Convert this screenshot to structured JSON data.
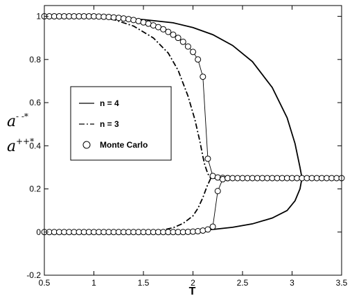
{
  "chart_data": {
    "type": "line",
    "title": "",
    "xlabel": "T",
    "ylabel_lines": [
      {
        "base": "a",
        "sup": "- -*"
      },
      {
        "base": "a",
        "sup": "++*"
      }
    ],
    "xlim": [
      0.5,
      3.5
    ],
    "ylim": [
      -0.2,
      1.05
    ],
    "x_ticks": [
      0.5,
      1,
      1.5,
      2,
      2.5,
      3,
      3.5
    ],
    "y_ticks": [
      -0.2,
      0,
      0.2,
      0.4,
      0.6,
      0.8,
      1
    ],
    "x_tick_labels": [
      "0.5",
      "1",
      "1.5",
      "2",
      "2.5",
      "3",
      "3.5"
    ],
    "y_tick_labels": [
      "-0.2",
      "0",
      "0.2",
      "0.4",
      "0.6",
      "0.8",
      "1"
    ],
    "grid": false,
    "legend_position": "left",
    "series": [
      {
        "name": "n = 4",
        "style": "solid",
        "color": "#000000",
        "branches": [
          {
            "x": [
              0.5,
              1.0,
              1.5,
              1.8,
              2.0,
              2.2,
              2.4,
              2.6,
              2.8,
              2.95,
              3.03,
              3.08,
              3.1
            ],
            "y": [
              1.0,
              0.997,
              0.985,
              0.97,
              0.948,
              0.915,
              0.865,
              0.79,
              0.67,
              0.53,
              0.41,
              0.3,
              0.25
            ]
          },
          {
            "x": [
              0.5,
              1.0,
              1.5,
              1.8,
              2.0,
              2.2,
              2.4,
              2.6,
              2.8,
              2.95,
              3.03,
              3.08,
              3.1
            ],
            "y": [
              0.0,
              0.0,
              0.001,
              0.003,
              0.006,
              0.012,
              0.022,
              0.038,
              0.065,
              0.1,
              0.145,
              0.2,
              0.25
            ]
          },
          {
            "x": [
              3.1,
              3.5
            ],
            "y": [
              0.25,
              0.25
            ]
          }
        ]
      },
      {
        "name": "n = 3",
        "style": "dashdot",
        "color": "#000000",
        "branches": [
          {
            "x": [
              0.5,
              1.0,
              1.2,
              1.4,
              1.6,
              1.75,
              1.85,
              1.95,
              2.02,
              2.07,
              2.1,
              2.12,
              2.15,
              2.18
            ],
            "y": [
              1.0,
              0.998,
              0.985,
              0.955,
              0.9,
              0.83,
              0.75,
              0.63,
              0.52,
              0.42,
              0.35,
              0.31,
              0.27,
              0.25
            ]
          },
          {
            "x": [
              0.5,
              1.0,
              1.5,
              1.6,
              1.7,
              1.8,
              1.9,
              2.0,
              2.05,
              2.1,
              2.14,
              2.18
            ],
            "y": [
              0.0,
              0.0,
              0.001,
              0.004,
              0.01,
              0.02,
              0.04,
              0.075,
              0.11,
              0.16,
              0.21,
              0.25
            ]
          },
          {
            "x": [
              2.18,
              3.5
            ],
            "y": [
              0.25,
              0.25
            ]
          }
        ]
      },
      {
        "name": "Monte Carlo",
        "style": "markers-line",
        "marker": "circle",
        "color": "#000000",
        "branches": [
          {
            "x": [
              0.5,
              0.55,
              0.6,
              0.65,
              0.7,
              0.75,
              0.8,
              0.85,
              0.9,
              0.95,
              1.0,
              1.05,
              1.1,
              1.15,
              1.2,
              1.25,
              1.3,
              1.35,
              1.4,
              1.45,
              1.5,
              1.55,
              1.6,
              1.65,
              1.7,
              1.75,
              1.8,
              1.85,
              1.9,
              1.95,
              2.0,
              2.05,
              2.1,
              2.15,
              2.2,
              2.25,
              2.3,
              2.35
            ],
            "y": [
              1.0,
              1.0,
              1.0,
              1.0,
              1.0,
              1.0,
              1.0,
              1.0,
              1.0,
              1.0,
              1.0,
              0.999,
              0.998,
              0.997,
              0.995,
              0.993,
              0.99,
              0.987,
              0.983,
              0.978,
              0.972,
              0.966,
              0.958,
              0.95,
              0.94,
              0.928,
              0.915,
              0.9,
              0.882,
              0.86,
              0.835,
              0.8,
              0.72,
              0.34,
              0.26,
              0.253,
              0.251,
              0.25
            ]
          },
          {
            "x": [
              0.5,
              0.55,
              0.6,
              0.65,
              0.7,
              0.75,
              0.8,
              0.85,
              0.9,
              0.95,
              1.0,
              1.05,
              1.1,
              1.15,
              1.2,
              1.25,
              1.3,
              1.35,
              1.4,
              1.45,
              1.5,
              1.55,
              1.6,
              1.65,
              1.7,
              1.75,
              1.8,
              1.85,
              1.9,
              1.95,
              2.0,
              2.05,
              2.1,
              2.15,
              2.2,
              2.25,
              2.3,
              2.35
            ],
            "y": [
              0.0,
              0.0,
              0.0,
              0.0,
              0.0,
              0.0,
              0.0,
              0.0,
              0.0,
              0.0,
              0.0,
              0.0,
              0.0,
              0.0,
              0.0,
              0.0,
              0.0,
              0.0,
              0.0,
              0.0,
              0.0,
              0.0,
              0.0,
              0.0,
              0.0,
              0.0,
              0.0,
              0.0,
              0.0,
              0.001,
              0.002,
              0.004,
              0.007,
              0.012,
              0.025,
              0.19,
              0.245,
              0.25
            ]
          },
          {
            "x": [
              2.35,
              2.4,
              2.45,
              2.5,
              2.55,
              2.6,
              2.65,
              2.7,
              2.75,
              2.8,
              2.85,
              2.9,
              2.95,
              3.0,
              3.05,
              3.1,
              3.15,
              3.2,
              3.25,
              3.3,
              3.35,
              3.4,
              3.45,
              3.5
            ],
            "y": [
              0.25,
              0.25,
              0.25,
              0.25,
              0.25,
              0.25,
              0.25,
              0.25,
              0.25,
              0.25,
              0.25,
              0.25,
              0.25,
              0.25,
              0.25,
              0.25,
              0.25,
              0.25,
              0.25,
              0.25,
              0.25,
              0.25,
              0.25,
              0.25
            ]
          }
        ]
      }
    ],
    "legend": {
      "items": [
        {
          "label": "n = 4",
          "style": "solid"
        },
        {
          "label": "n = 3",
          "style": "dashdot"
        },
        {
          "label": "Monte Carlo",
          "style": "marker"
        }
      ]
    }
  }
}
